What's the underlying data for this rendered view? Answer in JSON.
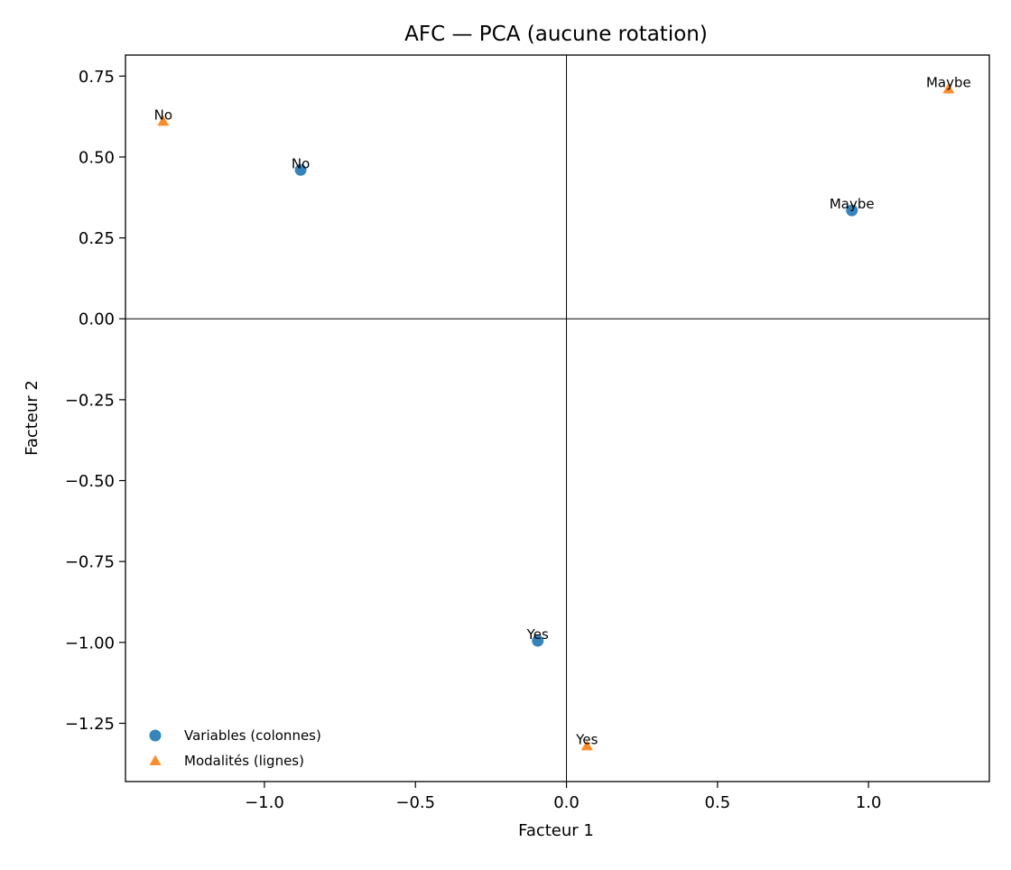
{
  "chart_data": {
    "type": "scatter",
    "title": "AFC — PCA (aucune rotation)",
    "xlabel": "Facteur 1",
    "ylabel": "Facteur 2",
    "xlim": [
      -1.46,
      1.4
    ],
    "ylim": [
      -1.43,
      0.815
    ],
    "xticks": [
      -1.0,
      -0.5,
      0.0,
      0.5,
      1.0
    ],
    "xtick_labels": [
      "−1.0",
      "−0.5",
      "0.0",
      "0.5",
      "1.0"
    ],
    "yticks": [
      0.75,
      0.5,
      0.25,
      0.0,
      -0.25,
      -0.5,
      -0.75,
      -1.0,
      -1.25
    ],
    "ytick_labels": [
      "0.75",
      "0.50",
      "0.25",
      "0.00",
      "−0.25",
      "−0.50",
      "−0.75",
      "−1.00",
      "−1.25"
    ],
    "grid": false,
    "reference_lines": {
      "x": 0,
      "y": 0
    },
    "legend_position": "lower-left",
    "series": [
      {
        "name": "Variables (colonnes)",
        "marker": "circle",
        "color": "#1f77b4",
        "points": [
          {
            "label": "No",
            "x": -0.88,
            "y": 0.46
          },
          {
            "label": "Maybe",
            "x": 0.945,
            "y": 0.335
          },
          {
            "label": "Yes",
            "x": -0.095,
            "y": -0.995
          }
        ]
      },
      {
        "name": "Modalités (lignes)",
        "marker": "triangle",
        "color": "#ff7f0e",
        "points": [
          {
            "label": "No",
            "x": -1.335,
            "y": 0.61
          },
          {
            "label": "Maybe",
            "x": 1.265,
            "y": 0.71
          },
          {
            "label": "Yes",
            "x": 0.068,
            "y": -1.32
          }
        ]
      }
    ]
  }
}
